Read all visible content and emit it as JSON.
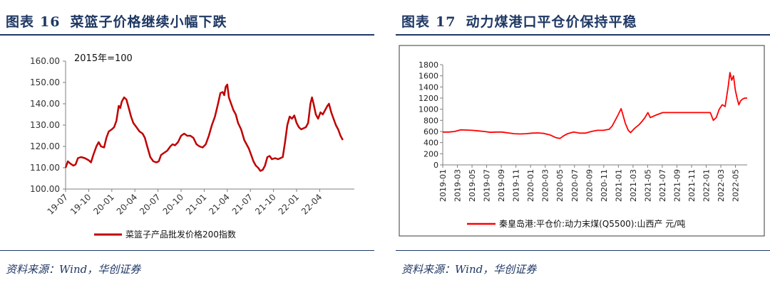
{
  "left": {
    "title_label": "图表",
    "title_number": "16",
    "title_text": "菜篮子价格继续小幅下跌",
    "source": "资料来源：Wind，华创证券",
    "annotation": "2015年=100",
    "legend": "菜篮子产品批发价格200指数",
    "chart_data": {
      "type": "line",
      "ylim": [
        100,
        160
      ],
      "yticks": [
        "100.00",
        "110.00",
        "120.00",
        "130.00",
        "140.00",
        "150.00",
        "160.00"
      ],
      "xticks": [
        "19-07",
        "19-10",
        "20-01",
        "20-04",
        "20-07",
        "20-10",
        "21-01",
        "21-04",
        "21-07",
        "21-10",
        "22-01",
        "22-04"
      ],
      "xrange": [
        0,
        37.5
      ],
      "series": [
        {
          "name": "菜篮子产品批发价格200指数",
          "color": "#c00000",
          "points": [
            [
              0,
              110
            ],
            [
              0.3,
              113
            ],
            [
              0.6,
              112
            ],
            [
              1,
              111
            ],
            [
              1.3,
              111.5
            ],
            [
              1.6,
              114.5
            ],
            [
              2,
              115
            ],
            [
              2.5,
              114.5
            ],
            [
              3,
              113.5
            ],
            [
              3.3,
              112.5
            ],
            [
              3.6,
              116
            ],
            [
              4,
              120
            ],
            [
              4.3,
              122
            ],
            [
              4.6,
              120
            ],
            [
              5,
              119.5
            ],
            [
              5.3,
              124
            ],
            [
              5.6,
              127
            ],
            [
              6,
              128
            ],
            [
              6.3,
              129
            ],
            [
              6.6,
              132
            ],
            [
              6.9,
              139
            ],
            [
              7.1,
              138
            ],
            [
              7.3,
              141
            ],
            [
              7.6,
              143
            ],
            [
              7.9,
              142
            ],
            [
              8.2,
              138
            ],
            [
              8.5,
              134
            ],
            [
              8.8,
              131
            ],
            [
              9.2,
              129
            ],
            [
              9.6,
              127
            ],
            [
              10,
              126
            ],
            [
              10.3,
              124
            ],
            [
              10.6,
              120
            ],
            [
              11,
              115
            ],
            [
              11.4,
              113
            ],
            [
              11.8,
              112.5
            ],
            [
              12.1,
              113
            ],
            [
              12.4,
              116
            ],
            [
              12.8,
              117
            ],
            [
              13.2,
              118
            ],
            [
              13.6,
              120
            ],
            [
              13.9,
              121
            ],
            [
              14.2,
              120.5
            ],
            [
              14.6,
              122
            ],
            [
              15,
              125
            ],
            [
              15.4,
              126
            ],
            [
              15.8,
              125
            ],
            [
              16.2,
              125
            ],
            [
              16.6,
              124
            ],
            [
              17,
              121
            ],
            [
              17.4,
              120
            ],
            [
              17.8,
              119.5
            ],
            [
              18.2,
              121
            ],
            [
              18.6,
              125
            ],
            [
              19,
              130
            ],
            [
              19.4,
              134
            ],
            [
              19.8,
              140
            ],
            [
              20.1,
              145
            ],
            [
              20.4,
              145.5
            ],
            [
              20.6,
              144
            ],
            [
              20.8,
              148
            ],
            [
              21,
              149
            ],
            [
              21.2,
              143
            ],
            [
              21.5,
              140
            ],
            [
              21.8,
              137
            ],
            [
              22.1,
              135
            ],
            [
              22.4,
              131
            ],
            [
              22.8,
              128
            ],
            [
              23.2,
              123
            ],
            [
              23.5,
              121
            ],
            [
              23.8,
              119
            ],
            [
              24.1,
              116
            ],
            [
              24.4,
              113
            ],
            [
              24.7,
              111
            ],
            [
              25,
              110
            ],
            [
              25.3,
              108.5
            ],
            [
              25.6,
              109
            ],
            [
              25.9,
              111
            ],
            [
              26.2,
              115
            ],
            [
              26.5,
              115.5
            ],
            [
              26.8,
              114
            ],
            [
              27.2,
              114.5
            ],
            [
              27.6,
              114
            ],
            [
              27.9,
              114.5
            ],
            [
              28.2,
              115
            ],
            [
              28.5,
              122
            ],
            [
              28.8,
              130
            ],
            [
              29.1,
              134
            ],
            [
              29.4,
              133
            ],
            [
              29.7,
              134.5
            ],
            [
              30,
              131
            ],
            [
              30.3,
              129
            ],
            [
              30.6,
              128
            ],
            [
              30.9,
              128.5
            ],
            [
              31.2,
              129
            ],
            [
              31.5,
              131
            ],
            [
              31.8,
              140
            ],
            [
              32,
              143
            ],
            [
              32.2,
              140
            ],
            [
              32.5,
              135
            ],
            [
              32.8,
              133
            ],
            [
              33.1,
              136
            ],
            [
              33.4,
              135
            ],
            [
              33.7,
              137
            ],
            [
              34,
              139
            ],
            [
              34.2,
              140
            ],
            [
              34.5,
              136
            ],
            [
              34.8,
              133
            ],
            [
              35.1,
              130
            ],
            [
              35.4,
              128
            ],
            [
              35.7,
              125
            ],
            [
              36,
              123
            ]
          ]
        }
      ]
    }
  },
  "right": {
    "title_label": "图表",
    "title_number": "17",
    "title_text": "动力煤港口平仓价保持平稳",
    "source": "资料来源：Wind，华创证券",
    "legend": "秦皇岛港:平仓价:动力末煤(Q5500):山西产 元/吨",
    "chart_data": {
      "type": "line",
      "ylim": [
        0,
        1800
      ],
      "yticks": [
        "0",
        "200",
        "400",
        "600",
        "800",
        "1000",
        "1200",
        "1400",
        "1600",
        "1800"
      ],
      "xticks": [
        "2019-01",
        "2019-03",
        "2019-05",
        "2019-07",
        "2019-09",
        "2019-11",
        "2020-01",
        "2020-03",
        "2020-05",
        "2020-07",
        "2020-09",
        "2020-11",
        "2021-01",
        "2021-03",
        "2021-05",
        "2021-07",
        "2021-09",
        "2021-11",
        "2022-01",
        "2022-03",
        "2022-05"
      ],
      "xrange": [
        0,
        41.6
      ],
      "series": [
        {
          "name": "秦皇岛港:平仓价:动力末煤(Q5500):山西产 元/吨",
          "color": "#ff0000",
          "points": [
            [
              0,
              590
            ],
            [
              1,
              590
            ],
            [
              2,
              600
            ],
            [
              3,
              630
            ],
            [
              4,
              625
            ],
            [
              5,
              620
            ],
            [
              6,
              610
            ],
            [
              7,
              600
            ],
            [
              8,
              585
            ],
            [
              9,
              590
            ],
            [
              10,
              590
            ],
            [
              11,
              575
            ],
            [
              12,
              560
            ],
            [
              13,
              555
            ],
            [
              14,
              560
            ],
            [
              15,
              570
            ],
            [
              16,
              575
            ],
            [
              17,
              565
            ],
            [
              18,
              540
            ],
            [
              19,
              490
            ],
            [
              19.7,
              475
            ],
            [
              20.3,
              520
            ],
            [
              21,
              560
            ],
            [
              22,
              590
            ],
            [
              23,
              570
            ],
            [
              24,
              570
            ],
            [
              25,
              600
            ],
            [
              26,
              620
            ],
            [
              27,
              620
            ],
            [
              28,
              640
            ],
            [
              28.5,
              700
            ],
            [
              29,
              800
            ],
            [
              29.5,
              900
            ],
            [
              30,
              1010
            ],
            [
              30.3,
              900
            ],
            [
              30.7,
              750
            ],
            [
              31.2,
              620
            ],
            [
              31.6,
              580
            ],
            [
              32.2,
              650
            ],
            [
              33,
              720
            ],
            [
              33.5,
              780
            ],
            [
              34,
              850
            ],
            [
              34.5,
              940
            ],
            [
              34.9,
              850
            ],
            [
              36,
              900
            ],
            [
              37,
              940
            ],
            [
              38,
              940
            ],
            [
              39,
              940
            ],
            [
              40,
              940
            ],
            [
              41,
              940
            ],
            [
              42,
              940
            ],
            [
              43,
              940
            ],
            [
              44,
              940
            ],
            [
              45,
              940
            ],
            [
              45.5,
              800
            ],
            [
              46,
              850
            ],
            [
              46.5,
              1000
            ],
            [
              47,
              1080
            ],
            [
              47.5,
              1050
            ],
            [
              48,
              1400
            ],
            [
              48.3,
              1660
            ],
            [
              48.6,
              1520
            ],
            [
              48.9,
              1600
            ],
            [
              49.2,
              1350
            ],
            [
              49.5,
              1200
            ],
            [
              49.8,
              1080
            ],
            [
              50.1,
              1150
            ],
            [
              50.4,
              1180
            ],
            [
              50.8,
              1200
            ],
            [
              51.2,
              1200
            ]
          ]
        }
      ]
    }
  }
}
